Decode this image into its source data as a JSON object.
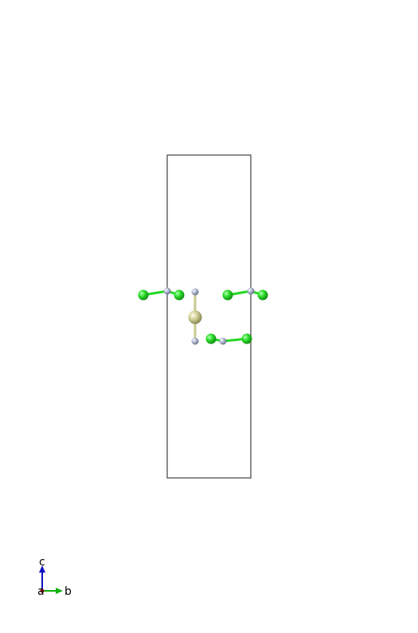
{
  "structure": {
    "cell_outline_color": "#404040",
    "atom_types": {
      "green": {
        "color": "#22d822"
      },
      "grey": {
        "color": "#a8b0c8"
      },
      "gold": {
        "color": "#c8c890"
      }
    },
    "bond_colors": {
      "grey": "#a8b0c8",
      "green": "#22d822",
      "gold": "#c8c890"
    }
  },
  "axes": {
    "labels": {
      "c": "c",
      "a": "a",
      "b": "b"
    },
    "colors": {
      "c": "#1010c0",
      "a": "#c01010",
      "b": "#10b010"
    }
  }
}
